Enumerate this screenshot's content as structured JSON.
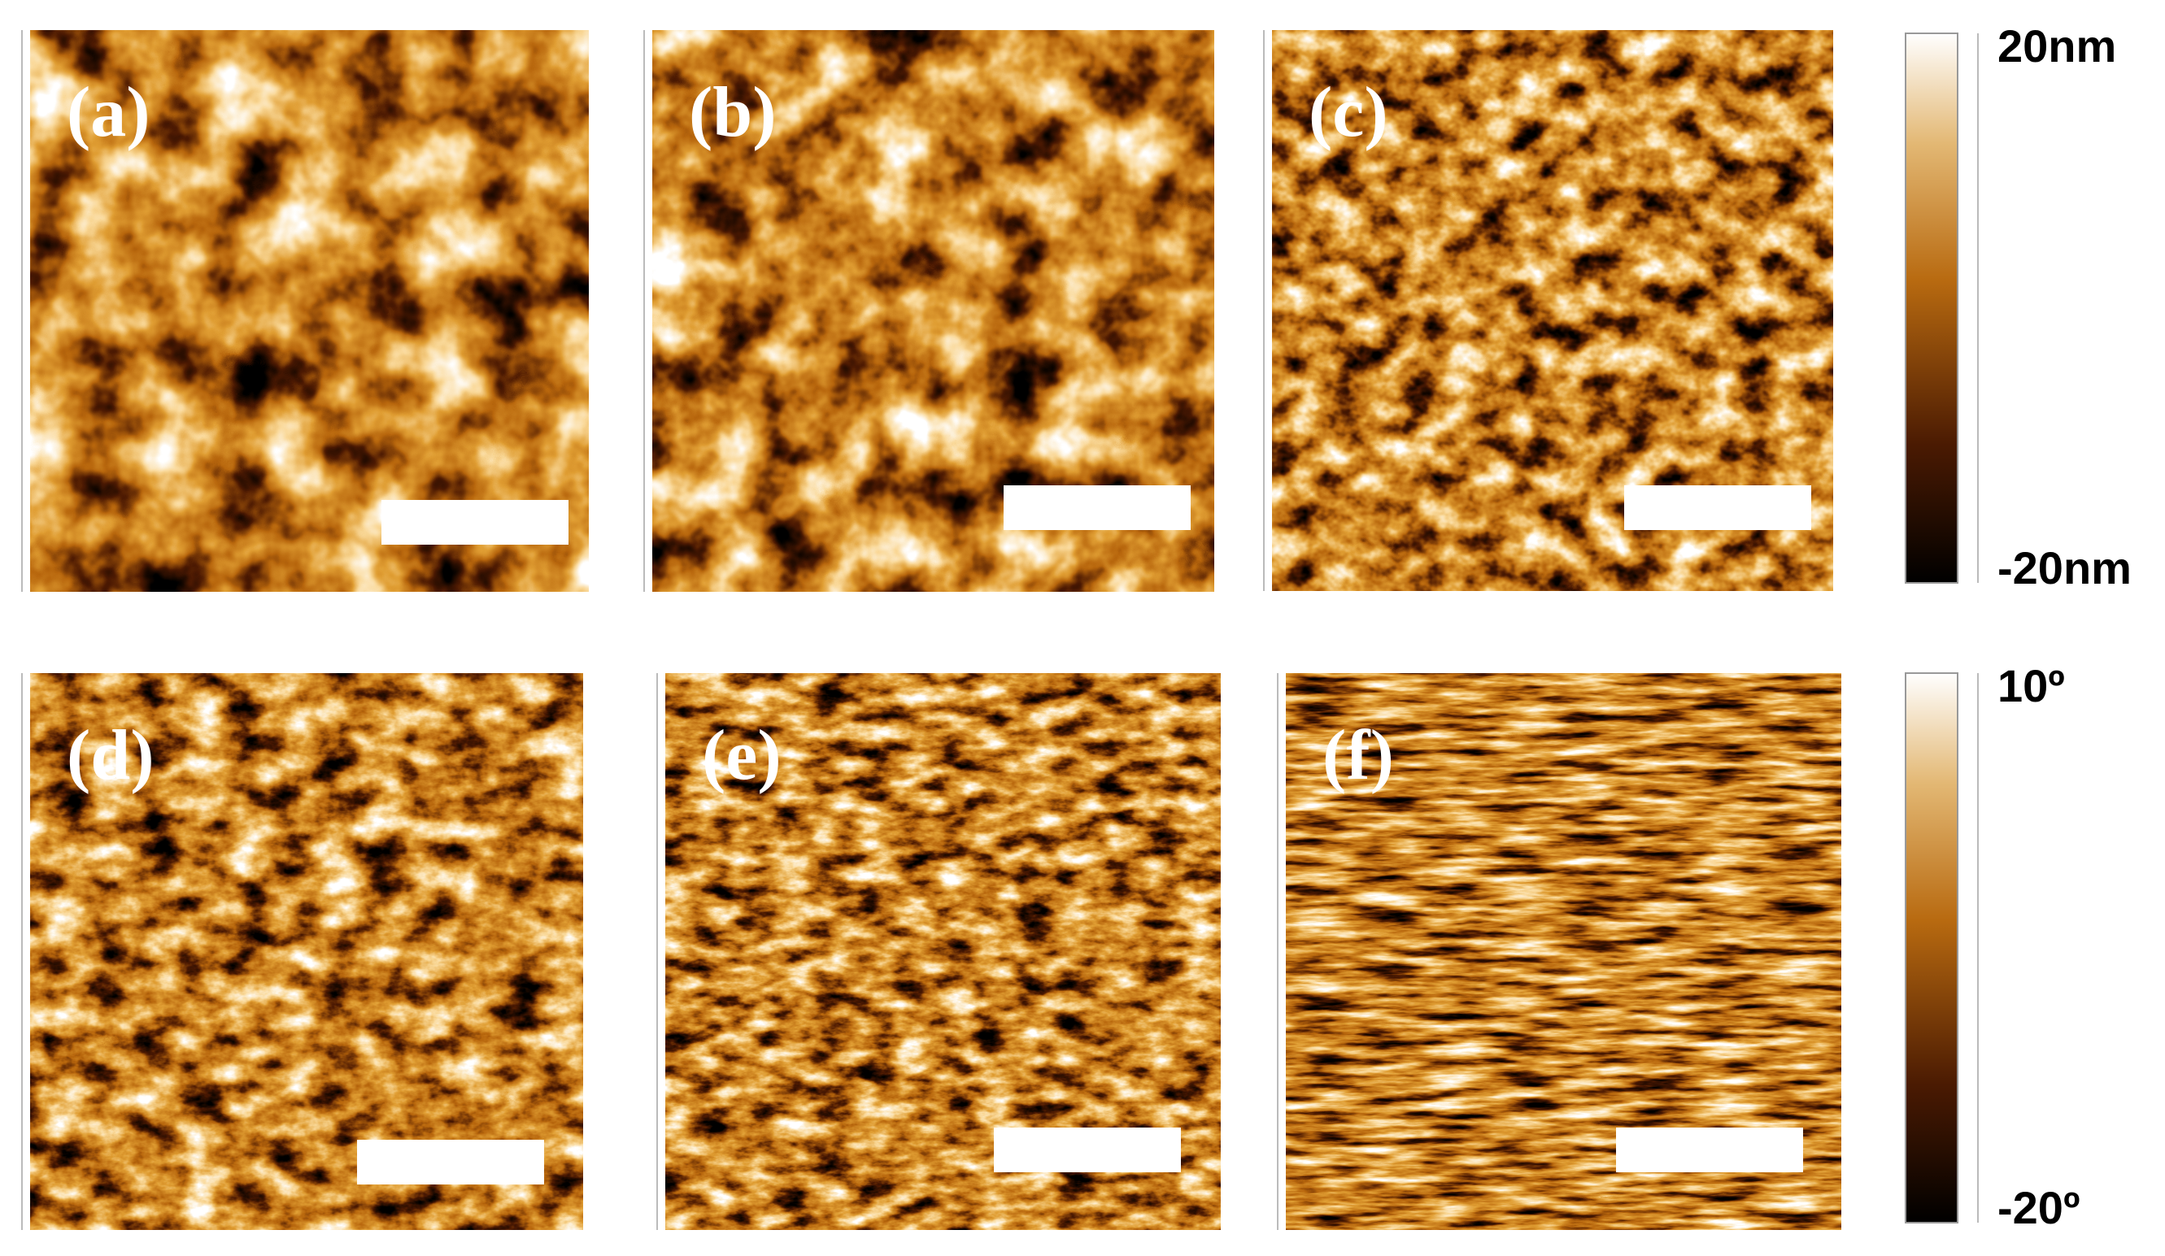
{
  "panels": [
    {
      "label": "(a)"
    },
    {
      "label": "(b)"
    },
    {
      "label": "(c)"
    },
    {
      "label": "(d)"
    },
    {
      "label": "(e)"
    },
    {
      "label": "(f)"
    }
  ],
  "colorbars": [
    {
      "top": "20nm",
      "bottom": "-20nm"
    },
    {
      "top": "10º",
      "bottom": "-20º"
    }
  ]
}
